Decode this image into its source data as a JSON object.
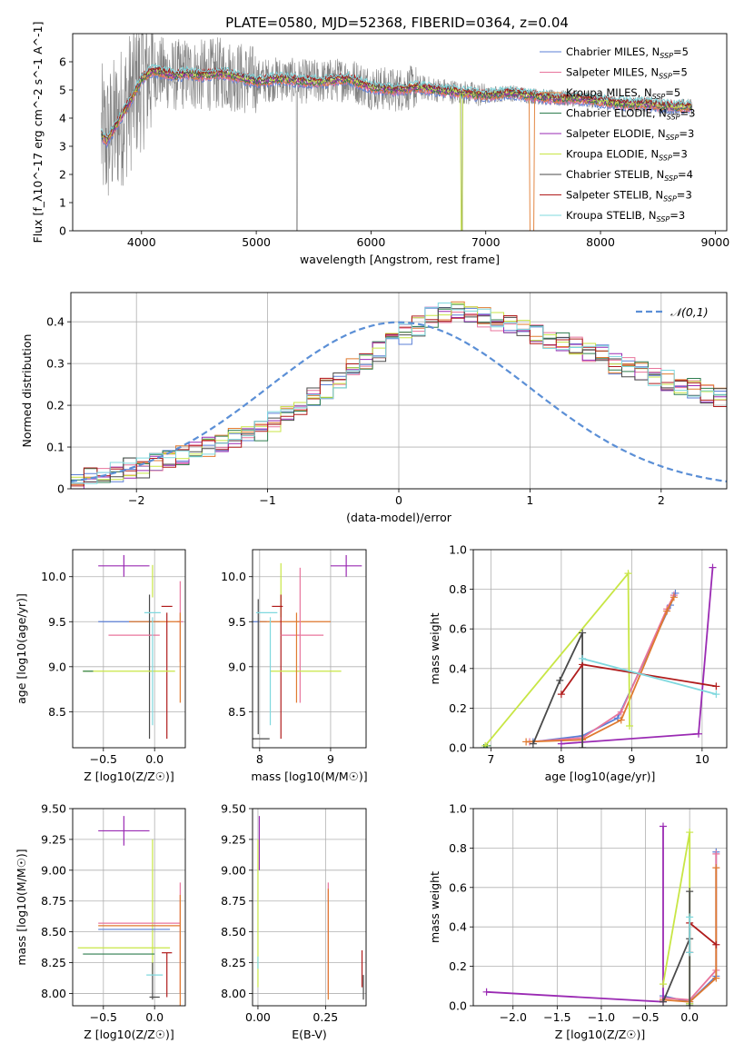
{
  "figure": {
    "title": "PLATE=0580, MJD=52368, FIBERID=0364, z=0.04"
  },
  "models": [
    {
      "name": "Chabrier MILES",
      "nssp": "5",
      "color": "#5b7fd6"
    },
    {
      "name": "Salpeter MILES",
      "nssp": "5",
      "color": "#e8749c"
    },
    {
      "name": "Kroupa MILES",
      "nssp": "5",
      "color": "#e07a2f"
    },
    {
      "name": "Chabrier ELODIE",
      "nssp": "3",
      "color": "#2e7d4f"
    },
    {
      "name": "Salpeter ELODIE",
      "nssp": "3",
      "color": "#9a2ab3"
    },
    {
      "name": "Kroupa ELODIE",
      "nssp": "3",
      "color": "#c8e645"
    },
    {
      "name": "Chabrier STELIB",
      "nssp": "4",
      "color": "#4a4a4a"
    },
    {
      "name": "Salpeter STELIB",
      "nssp": "3",
      "color": "#b01c1c"
    },
    {
      "name": "Kroupa STELIB",
      "nssp": "3",
      "color": "#7fd8de"
    }
  ],
  "chart_data": [
    {
      "id": "spectrum",
      "type": "line",
      "xlabel": "wavelength [Angstrom, rest frame]",
      "ylabel": "Flux [f_λ10^-17 erg cm^-2 s^-1 A^-1]",
      "xlim": [
        3400,
        9100
      ],
      "ylim": [
        0,
        7
      ],
      "xticks": [
        4000,
        5000,
        6000,
        7000,
        8000,
        9000
      ],
      "yticks": [
        0,
        1,
        2,
        3,
        4,
        5,
        6
      ],
      "data_color": "#808080",
      "continuum": [
        [
          3650,
          3.4
        ],
        [
          3700,
          3.2
        ],
        [
          3800,
          3.9
        ],
        [
          3900,
          4.6
        ],
        [
          4000,
          5.4
        ],
        [
          4100,
          5.7
        ],
        [
          4300,
          5.5
        ],
        [
          4400,
          5.6
        ],
        [
          4500,
          5.5
        ],
        [
          4700,
          5.6
        ],
        [
          5000,
          5.3
        ],
        [
          5200,
          5.4
        ],
        [
          5400,
          5.3
        ],
        [
          5600,
          5.3
        ],
        [
          5800,
          5.4
        ],
        [
          6000,
          5.1
        ],
        [
          6200,
          5.0
        ],
        [
          6400,
          5.1
        ],
        [
          6600,
          5.0
        ],
        [
          6800,
          4.9
        ],
        [
          7000,
          4.8
        ],
        [
          7200,
          4.9
        ],
        [
          7400,
          4.8
        ],
        [
          7600,
          4.7
        ],
        [
          7800,
          4.7
        ],
        [
          8000,
          4.6
        ],
        [
          8200,
          4.5
        ],
        [
          8400,
          4.5
        ],
        [
          8600,
          4.4
        ],
        [
          8800,
          4.4
        ]
      ],
      "noise_regions": [
        [
          3650,
          4100,
          2.6
        ],
        [
          4100,
          5000,
          1.3
        ],
        [
          5000,
          6400,
          0.8
        ],
        [
          6400,
          7000,
          0.45
        ],
        [
          7000,
          8800,
          0.3
        ]
      ],
      "grid": false,
      "legend": "top-right"
    },
    {
      "id": "residuals",
      "type": "line",
      "xlabel": "(data-model)/error",
      "ylabel": "Normed distribution",
      "xlim": [
        -2.5,
        2.5
      ],
      "ylim": [
        0,
        0.47
      ],
      "xticks": [
        -2,
        -1,
        0,
        1,
        2
      ],
      "yticks": [
        0.0,
        0.1,
        0.2,
        0.3,
        0.4
      ],
      "reference_label": "𝒩(0,1)",
      "bin_width": 0.1,
      "histogram": [
        0.02,
        0.03,
        0.03,
        0.04,
        0.05,
        0.05,
        0.06,
        0.07,
        0.08,
        0.09,
        0.1,
        0.11,
        0.12,
        0.13,
        0.14,
        0.16,
        0.18,
        0.2,
        0.22,
        0.24,
        0.26,
        0.29,
        0.31,
        0.33,
        0.35,
        0.37,
        0.39,
        0.41,
        0.42,
        0.43,
        0.42,
        0.41,
        0.4,
        0.39,
        0.38,
        0.37,
        0.36,
        0.35,
        0.34,
        0.33,
        0.32,
        0.3,
        0.29,
        0.28,
        0.27,
        0.26,
        0.25,
        0.24,
        0.23,
        0.22,
        0.21,
        0.2,
        0.19,
        0.17,
        0.16,
        0.15,
        0.14,
        0.13,
        0.12,
        0.11,
        0.1,
        0.09,
        0.08,
        0.08,
        0.07,
        0.06,
        0.06,
        0.05,
        0.05,
        0.04,
        0.04,
        0.04,
        0.03,
        0.03,
        0.03,
        0.03,
        0.03,
        0.02,
        0.02,
        0.02,
        0.02,
        0.02,
        0.02,
        0.02,
        0.02,
        0.02,
        0.02,
        0.02,
        0.02,
        0.02
      ],
      "grid": true,
      "legend": "top-right"
    },
    {
      "id": "age_vs_Z",
      "type": "scatter",
      "xlabel": "Z [log10(Z/Z☉)]",
      "ylabel": "age [log10(age/yr)]",
      "xlim": [
        -0.8,
        0.3
      ],
      "ylim": [
        8.1,
        10.3
      ],
      "xticks": [
        -0.5,
        0.0
      ],
      "yticks": [
        8.5,
        9.0,
        9.5,
        10.0
      ],
      "grid": true,
      "points": [
        {
          "m": 4,
          "x": -0.3,
          "y": 10.12,
          "xe": 0.25,
          "ye": 0.12
        },
        {
          "m": 5,
          "x": -0.02,
          "y": 9.95,
          "xe": 0.0,
          "ye": 0.18
        },
        {
          "m": 1,
          "x": 0.25,
          "y": 9.5,
          "xe": 0.03,
          "ye": 0.45
        },
        {
          "m": 0,
          "x": -0.25,
          "y": 9.5,
          "xe": 0.3,
          "ye": 0.0
        },
        {
          "m": 2,
          "x": 0.0,
          "y": 9.5,
          "xe": 0.25,
          "ye": 0.0
        },
        {
          "m": 6,
          "x": -0.05,
          "y": 9.0,
          "xe": 0.0,
          "ye": 0.8
        },
        {
          "m": 7,
          "x": 0.12,
          "y": 9.67,
          "xe": 0.0,
          "ye": 0.0
        },
        {
          "m": 7,
          "x": 0.12,
          "y": 8.9,
          "xe": 0.0,
          "ye": 0.7
        },
        {
          "m": 1,
          "x": -0.2,
          "y": 9.35,
          "xe": 0.25,
          "ye": 0.0
        },
        {
          "m": 5,
          "x": -0.25,
          "y": 8.95,
          "xe": 0.45,
          "ye": 0.0
        },
        {
          "m": 3,
          "x": -0.65,
          "y": 8.95,
          "xe": 0.05,
          "ye": 0.0
        },
        {
          "m": 8,
          "x": -0.02,
          "y": 9.6,
          "xe": 0.08,
          "ye": 0.0
        },
        {
          "m": 8,
          "x": -0.02,
          "y": 8.95,
          "xe": 0.0,
          "ye": 0.6
        },
        {
          "m": 2,
          "x": 0.25,
          "y": 9.1,
          "xe": 0.0,
          "ye": 0.5
        }
      ]
    },
    {
      "id": "age_vs_mass",
      "type": "scatter",
      "xlabel": "mass [log10(M/M☉)]",
      "ylabel": "",
      "xlim": [
        7.9,
        9.5
      ],
      "ylim": [
        8.1,
        10.3
      ],
      "xticks": [
        8,
        9
      ],
      "yticks": [
        8.5,
        9.0,
        9.5,
        10.0
      ],
      "grid": true,
      "points": [
        {
          "m": 4,
          "x": 9.22,
          "y": 10.12,
          "xe": 0.22,
          "ye": 0.12
        },
        {
          "m": 5,
          "x": 8.3,
          "y": 9.85,
          "xe": 0.0,
          "ye": 0.3
        },
        {
          "m": 0,
          "x": 8.0,
          "y": 9.5,
          "xe": 0.1,
          "ye": 0.0
        },
        {
          "m": 6,
          "x": 7.98,
          "y": 9.0,
          "xe": 0.0,
          "ye": 0.75
        },
        {
          "m": 6,
          "x": 8.02,
          "y": 8.2,
          "xe": 0.12,
          "ye": 0.0
        },
        {
          "m": 2,
          "x": 8.5,
          "y": 9.5,
          "xe": 0.5,
          "ye": 0.0
        },
        {
          "m": 7,
          "x": 8.25,
          "y": 9.67,
          "xe": 0.0,
          "ye": 0.0
        },
        {
          "m": 7,
          "x": 8.3,
          "y": 9.0,
          "xe": 0.0,
          "ye": 0.8
        },
        {
          "m": 1,
          "x": 8.6,
          "y": 9.35,
          "xe": 0.3,
          "ye": 0.0
        },
        {
          "m": 1,
          "x": 8.57,
          "y": 9.35,
          "xe": 0.0,
          "ye": 0.75
        },
        {
          "m": 5,
          "x": 8.65,
          "y": 8.95,
          "xe": 0.5,
          "ye": 0.0
        },
        {
          "m": 8,
          "x": 8.1,
          "y": 9.6,
          "xe": 0.15,
          "ye": 0.0
        },
        {
          "m": 8,
          "x": 8.15,
          "y": 8.95,
          "xe": 0.0,
          "ye": 0.6
        },
        {
          "m": 2,
          "x": 8.52,
          "y": 9.1,
          "xe": 0.0,
          "ye": 0.5
        }
      ]
    },
    {
      "id": "weight_vs_age",
      "type": "line",
      "xlabel": "age [log10(age/yr)]",
      "ylabel": "mass weight",
      "xlim": [
        6.75,
        10.35
      ],
      "ylim": [
        0,
        1
      ],
      "xticks": [
        7,
        8,
        9,
        10
      ],
      "yticks": [
        0.0,
        0.2,
        0.4,
        0.6,
        0.8,
        1.0
      ],
      "grid": true,
      "series": [
        {
          "m": 0,
          "points": [
            [
              7.6,
              0.03
            ],
            [
              8.3,
              0.06
            ],
            [
              8.8,
              0.15
            ],
            [
              9.55,
              0.72
            ],
            [
              9.62,
              0.78
            ]
          ]
        },
        {
          "m": 1,
          "points": [
            [
              7.55,
              0.03
            ],
            [
              8.3,
              0.05
            ],
            [
              8.85,
              0.18
            ],
            [
              9.5,
              0.7
            ],
            [
              9.6,
              0.77
            ]
          ]
        },
        {
          "m": 2,
          "points": [
            [
              7.5,
              0.03
            ],
            [
              8.3,
              0.04
            ],
            [
              8.85,
              0.14
            ],
            [
              9.5,
              0.69
            ],
            [
              9.6,
              0.76
            ]
          ]
        },
        {
          "m": 3,
          "points": [
            [
              6.9,
              0.0
            ],
            [
              6.95,
              0.01
            ]
          ]
        },
        {
          "m": 4,
          "points": [
            [
              8.0,
              0.02
            ],
            [
              9.95,
              0.07
            ],
            [
              10.15,
              0.91
            ]
          ]
        },
        {
          "m": 5,
          "points": [
            [
              6.92,
              0.01
            ],
            [
              8.95,
              0.88
            ],
            [
              8.97,
              0.11
            ]
          ]
        },
        {
          "m": 6,
          "points": [
            [
              7.6,
              0.02
            ],
            [
              7.98,
              0.34
            ],
            [
              8.3,
              0.58
            ],
            [
              8.3,
              0.0
            ]
          ]
        },
        {
          "m": 7,
          "points": [
            [
              8.0,
              0.27
            ],
            [
              8.3,
              0.42
            ],
            [
              10.2,
              0.31
            ]
          ]
        },
        {
          "m": 8,
          "points": [
            [
              8.3,
              0.45
            ],
            [
              10.2,
              0.27
            ]
          ]
        }
      ]
    },
    {
      "id": "mass_vs_Z",
      "type": "scatter",
      "xlabel": "Z [log10(Z/Z☉)]",
      "ylabel": "mass [log10(M/M☉)]",
      "xlim": [
        -0.8,
        0.3
      ],
      "ylim": [
        7.9,
        9.5
      ],
      "xticks": [
        -0.5,
        0.0
      ],
      "yticks": [
        8.0,
        8.25,
        8.5,
        8.75,
        9.0,
        9.25,
        9.5
      ],
      "grid": true,
      "points": [
        {
          "m": 4,
          "x": -0.3,
          "y": 9.32,
          "xe": 0.25,
          "ye": 0.12
        },
        {
          "m": 5,
          "x": -0.02,
          "y": 8.7,
          "xe": 0.0,
          "ye": 0.55
        },
        {
          "m": 0,
          "x": -0.2,
          "y": 8.52,
          "xe": 0.35,
          "ye": 0.0
        },
        {
          "m": 1,
          "x": -0.15,
          "y": 8.57,
          "xe": 0.4,
          "ye": 0.0
        },
        {
          "m": 2,
          "x": -0.15,
          "y": 8.55,
          "xe": 0.4,
          "ye": 0.0
        },
        {
          "m": 3,
          "x": -0.35,
          "y": 8.32,
          "xe": 0.35,
          "ye": 0.0
        },
        {
          "m": 5,
          "x": -0.3,
          "y": 8.37,
          "xe": 0.45,
          "ye": 0.0
        },
        {
          "m": 6,
          "x": -0.02,
          "y": 8.1,
          "xe": 0.0,
          "ye": 0.15
        },
        {
          "m": 6,
          "x": 0.0,
          "y": 7.97,
          "xe": 0.05,
          "ye": 0.0
        },
        {
          "m": 7,
          "x": 0.12,
          "y": 8.33,
          "xe": 0.05,
          "ye": 0.0
        },
        {
          "m": 7,
          "x": 0.12,
          "y": 8.15,
          "xe": 0.0,
          "ye": 0.18
        },
        {
          "m": 8,
          "x": 0.0,
          "y": 8.15,
          "xe": 0.08,
          "ye": 0.0
        },
        {
          "m": 1,
          "x": 0.25,
          "y": 8.45,
          "xe": 0.0,
          "ye": 0.45
        },
        {
          "m": 2,
          "x": 0.25,
          "y": 8.3,
          "xe": 0.0,
          "ye": 0.5
        }
      ]
    },
    {
      "id": "mass_vs_ebv",
      "type": "scatter",
      "xlabel": "E(B-V)",
      "ylabel": "",
      "xlim": [
        -0.02,
        0.4
      ],
      "ylim": [
        7.9,
        9.5
      ],
      "xticks": [
        0.0,
        0.25
      ],
      "yticks": [
        8.0,
        8.25,
        8.5,
        8.75,
        9.0,
        9.25,
        9.5
      ],
      "grid": true,
      "points": [
        {
          "m": 4,
          "x": 0.005,
          "y": 9.22,
          "xe": 0.0,
          "ye": 0.22
        },
        {
          "m": 5,
          "x": 0.0,
          "y": 8.65,
          "xe": 0.0,
          "ye": 0.6
        },
        {
          "m": 8,
          "x": 0.0,
          "y": 8.25,
          "xe": 0.0,
          "ye": 0.05
        },
        {
          "m": 1,
          "x": 0.26,
          "y": 8.45,
          "xe": 0.0,
          "ye": 0.45
        },
        {
          "m": 2,
          "x": 0.26,
          "y": 8.4,
          "xe": 0.0,
          "ye": 0.45
        },
        {
          "m": 7,
          "x": 0.385,
          "y": 8.2,
          "xe": 0.0,
          "ye": 0.15
        },
        {
          "m": 6,
          "x": 0.39,
          "y": 8.05,
          "xe": 0.0,
          "ye": 0.1
        }
      ]
    },
    {
      "id": "weight_vs_Z",
      "type": "line",
      "xlabel": "Z [log10(Z/Z☉)]",
      "ylabel": "mass weight",
      "xlim": [
        -2.45,
        0.42
      ],
      "ylim": [
        0,
        1
      ],
      "xticks": [
        -2.0,
        -1.5,
        -1.0,
        -0.5,
        0.0
      ],
      "yticks": [
        0.0,
        0.2,
        0.4,
        0.6,
        0.8,
        1.0
      ],
      "grid": true,
      "series": [
        {
          "m": 0,
          "points": [
            [
              -0.3,
              0.05
            ],
            [
              0.0,
              0.02
            ],
            [
              0.3,
              0.15
            ],
            [
              0.3,
              0.78
            ]
          ]
        },
        {
          "m": 1,
          "points": [
            [
              -0.3,
              0.04
            ],
            [
              0.0,
              0.03
            ],
            [
              0.3,
              0.18
            ],
            [
              0.3,
              0.77
            ]
          ]
        },
        {
          "m": 2,
          "points": [
            [
              -0.3,
              0.03
            ],
            [
              0.0,
              0.02
            ],
            [
              0.3,
              0.14
            ],
            [
              0.3,
              0.7
            ]
          ]
        },
        {
          "m": 3,
          "points": [
            [
              0.0,
              0.0
            ],
            [
              0.0,
              0.01
            ]
          ]
        },
        {
          "m": 4,
          "points": [
            [
              -2.3,
              0.07
            ],
            [
              -0.3,
              0.02
            ],
            [
              -0.3,
              0.91
            ]
          ]
        },
        {
          "m": 5,
          "points": [
            [
              -0.3,
              0.11
            ],
            [
              0.0,
              0.88
            ],
            [
              0.0,
              0.01
            ]
          ]
        },
        {
          "m": 6,
          "points": [
            [
              -0.3,
              0.02
            ],
            [
              0.0,
              0.34
            ],
            [
              0.0,
              0.58
            ],
            [
              0.0,
              0.0
            ]
          ]
        },
        {
          "m": 7,
          "points": [
            [
              0.0,
              0.27
            ],
            [
              0.0,
              0.42
            ],
            [
              0.3,
              0.31
            ]
          ]
        },
        {
          "m": 8,
          "points": [
            [
              0.0,
              0.45
            ],
            [
              0.0,
              0.27
            ]
          ]
        }
      ]
    }
  ]
}
